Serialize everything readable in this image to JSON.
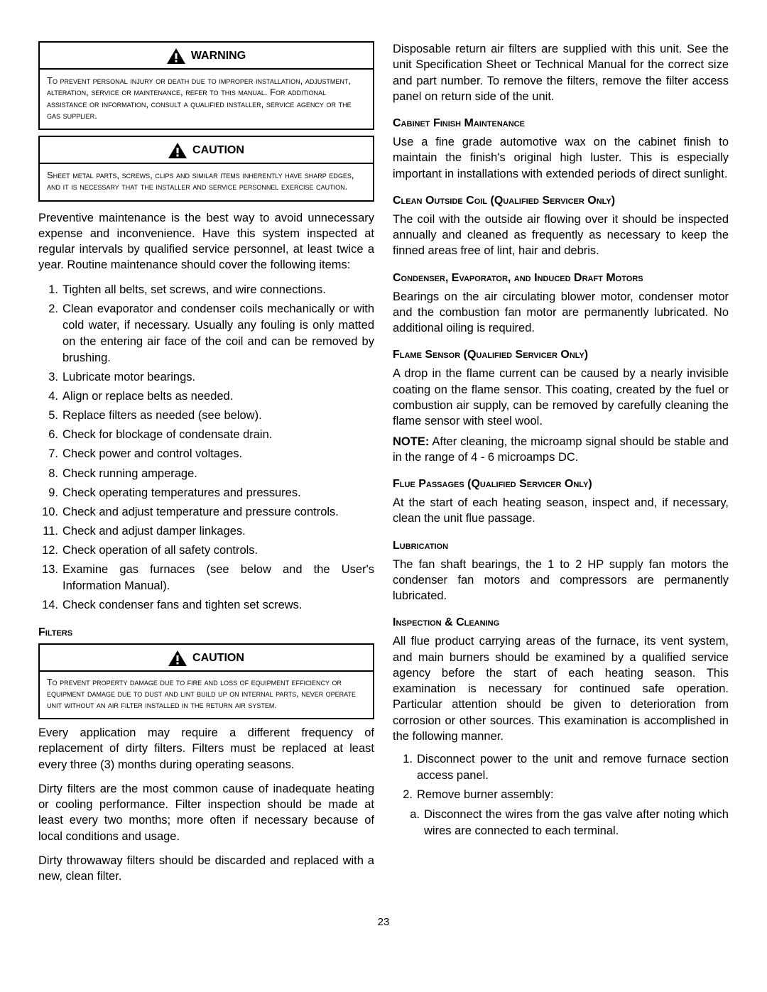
{
  "page_number": "23",
  "left": {
    "warning": {
      "title": "WARNING",
      "body": "To prevent personal injury or death due to improper installation, adjustment, alteration, service or maintenance, refer to this manual. For additional assistance or information, consult a qualified installer, service agency or the gas supplier."
    },
    "caution1": {
      "title": "CAUTION",
      "body": "Sheet metal parts, screws, clips and similar items inherently have sharp edges, and it is necessary that the installer and service personnel exercise caution."
    },
    "intro": "Preventive maintenance is the best way to avoid unnecessary expense and inconvenience. Have this system inspected at regular intervals by qualified service personnel, at least twice a year. Routine maintenance should cover the following items:",
    "list": [
      "Tighten all belts, set screws, and wire connections.",
      "Clean evaporator and condenser coils mechanically or with cold water, if necessary. Usually any fouling is only matted on the entering air face of the coil and can be removed by brushing.",
      "Lubricate motor bearings.",
      "Align or replace belts as needed.",
      "Replace filters as needed (see below).",
      "Check for blockage of condensate drain.",
      "Check power and control voltages.",
      "Check running amperage.",
      "Check operating temperatures and pressures.",
      "Check and adjust temperature and pressure controls.",
      "Check and adjust damper linkages.",
      "Check operation of all safety controls.",
      "Examine gas furnaces (see below and the User's Information Manual).",
      "Check condenser fans and tighten set screws."
    ],
    "filters_head": "Filters",
    "caution2": {
      "title": "CAUTION",
      "body": "To prevent property damage due to fire and loss of equipment efficiency or equipment damage due to dust and lint build up on internal parts, never operate unit without an air filter installed in the return air system."
    },
    "filters_p1": "Every application may require a different frequency of replacement of dirty filters. Filters must be replaced at least every three (3) months during operating seasons.",
    "filters_p2": "Dirty filters are the most common cause of inadequate heating or cooling performance. Filter inspection should be made at least every two months; more often if necessary because of local conditions and usage.",
    "filters_p3": "Dirty throwaway filters should be discarded and replaced with a new, clean filter."
  },
  "right": {
    "disposable": "Disposable return air filters are supplied with this unit. See the unit Specification Sheet or Technical Manual for the correct size and part number. To remove the filters, remove the filter access panel on return side of the unit.",
    "cabinet_head": "Cabinet Finish Maintenance",
    "cabinet_body": "Use a fine grade automotive wax on the cabinet finish to maintain the finish's original high luster. This is especially important in installations with extended periods of direct sunlight.",
    "clean_head": "Clean Outside Coil  (Qualified Servicer Only)",
    "clean_body": "The coil with the outside air flowing over it should be inspected annually and cleaned as frequently as necessary to keep the finned areas free of lint, hair and debris.",
    "cond_head": "Condenser, Evaporator, and  Induced Draft Motors",
    "cond_body": "Bearings on the air circulating blower motor, condenser motor and the combustion fan motor are permanently lubricated. No additional oiling is required.",
    "flame_head": "Flame Sensor (Qualified Servicer Only)",
    "flame_body": "A drop in the flame current can be caused by a nearly invisible coating on the flame sensor. This coating, created by the fuel or combustion air supply, can be removed by carefully cleaning the flame sensor with steel wool.",
    "flame_note_label": "NOTE:",
    "flame_note_body": " After cleaning, the microamp signal should be stable and in the range of 4 - 6 microamps DC.",
    "flue_head": "Flue Passages (Qualified Servicer Only)",
    "flue_body": "At the start of each heating season, inspect and, if necessary, clean the unit flue passage.",
    "lube_head": "Lubrication",
    "lube_body": "The fan shaft bearings, the 1 to 2 HP supply fan motors the condenser fan motors and compressors are permanently lubricated.",
    "insp_head": "Inspection & Cleaning",
    "insp_body": "All flue product carrying areas of the furnace, its vent system, and main burners should be examined by a qualified service agency before the start of each heating season. This examination is necessary for continued safe operation. Particular attention should be given to deterioration from corrosion or other sources. This examination is accomplished in the following manner.",
    "insp_list": [
      "Disconnect power to the unit and remove furnace section access panel.",
      "Remove burner assembly:"
    ],
    "insp_sub_a": "Disconnect the wires from the gas valve after noting which wires are connected to each terminal."
  },
  "icon": {
    "fill": "#000000",
    "mark": "#ffffff"
  }
}
